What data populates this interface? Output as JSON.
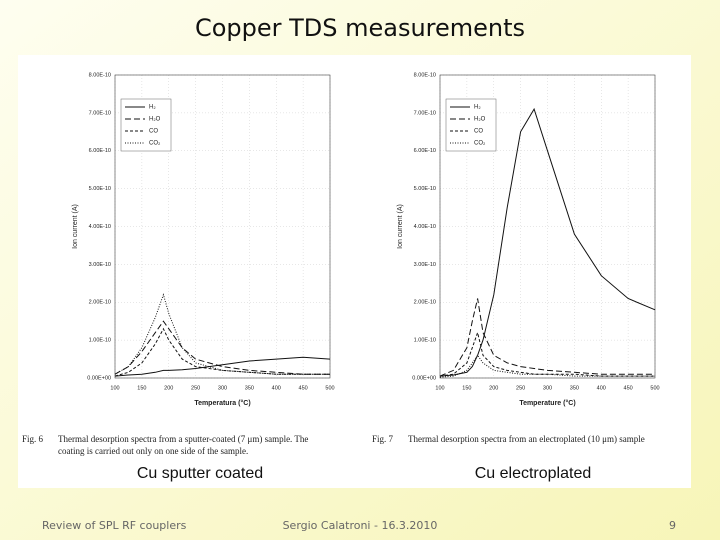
{
  "title": "Copper TDS measurements",
  "footer": {
    "left": "Review of SPL RF couplers",
    "center": "Sergio Calatroni - 16.3.2010",
    "page": "9"
  },
  "chart_data": [
    {
      "type": "line",
      "label": "Cu sputter coated",
      "caption": [
        "Fig. 6",
        "Thermal desorption spectra from a sputter-coated (7 μm) sample. The",
        "coating is carried out only on one side of the sample."
      ],
      "xlabel": "Temperatura (°C)",
      "ylabel": "Ion current (A)",
      "x": [
        100,
        125,
        150,
        175,
        190,
        200,
        225,
        250,
        300,
        350,
        400,
        450,
        500
      ],
      "series": [
        {
          "name": "H₂",
          "color": "#111111",
          "dash": "solid",
          "values": [
            5e-12,
            8e-12,
            1e-11,
            1.5e-11,
            2e-11,
            2e-11,
            2.2e-11,
            2.5e-11,
            3.5e-11,
            4.5e-11,
            5e-11,
            5.5e-11,
            5e-11
          ]
        },
        {
          "name": "H₂O",
          "color": "#111111",
          "dash": "long",
          "values": [
            1e-11,
            3e-11,
            7e-11,
            1.2e-10,
            1.5e-10,
            1.3e-10,
            8e-11,
            5e-11,
            3e-11,
            2e-11,
            1.5e-11,
            1e-11,
            1e-11
          ]
        },
        {
          "name": "CO",
          "color": "#111111",
          "dash": "dashed",
          "values": [
            5e-12,
            1.5e-11,
            4e-11,
            9e-11,
            1.3e-10,
            1e-10,
            5e-11,
            3e-11,
            2e-11,
            1.5e-11,
            1e-11,
            1e-11,
            1e-11
          ]
        },
        {
          "name": "CO₂",
          "color": "#111111",
          "dash": "dotted",
          "values": [
            1e-11,
            3e-11,
            8e-11,
            1.6e-10,
            2.2e-10,
            1.7e-10,
            8e-11,
            4e-11,
            2e-11,
            1.5e-11,
            1e-11,
            1e-11,
            1e-11
          ]
        }
      ],
      "xlim": [
        100,
        500
      ],
      "xticks": [
        100,
        150,
        200,
        250,
        300,
        350,
        400,
        450,
        500
      ],
      "ylim": [
        0,
        8e-10
      ],
      "yticks": [
        {
          "value": 0,
          "label": "0.00E+00"
        },
        {
          "value": 1e-10,
          "label": "1.00E-10"
        },
        {
          "value": 2e-10,
          "label": "2.00E-10"
        },
        {
          "value": 3e-10,
          "label": "3.00E-10"
        },
        {
          "value": 4e-10,
          "label": "4.00E-10"
        },
        {
          "value": 5e-10,
          "label": "5.00E-10"
        },
        {
          "value": 6e-10,
          "label": "6.00E-10"
        },
        {
          "value": 7e-10,
          "label": "7.00E-10"
        },
        {
          "value": 8e-10,
          "label": "8.00E-10"
        }
      ],
      "grid": true,
      "legend": "upper left"
    },
    {
      "type": "line",
      "label": "Cu electroplated",
      "caption": [
        "Fig. 7",
        "Thermal desorption spectra from an electroplated (10 μm) sample"
      ],
      "xlabel": "Temperature (°C)",
      "ylabel": "Ion current (A)",
      "x": [
        100,
        125,
        150,
        160,
        170,
        180,
        200,
        225,
        250,
        275,
        300,
        350,
        400,
        450,
        500
      ],
      "series": [
        {
          "name": "H₂",
          "color": "#111111",
          "dash": "solid",
          "values": [
            5e-12,
            8e-12,
            1.5e-11,
            3e-11,
            6e-11,
            1e-10,
            2.2e-10,
            4.5e-10,
            6.5e-10,
            7.1e-10,
            6e-10,
            3.8e-10,
            2.7e-10,
            2.1e-10,
            1.8e-10
          ]
        },
        {
          "name": "H₂O",
          "color": "#111111",
          "dash": "long",
          "values": [
            5e-12,
            2e-11,
            8e-11,
            1.5e-10,
            2.1e-10,
            1.2e-10,
            6e-11,
            4e-11,
            3e-11,
            2.5e-11,
            2e-11,
            1.5e-11,
            1e-11,
            1e-11,
            1e-11
          ]
        },
        {
          "name": "CO",
          "color": "#111111",
          "dash": "dashed",
          "values": [
            5e-12,
            1e-11,
            4e-11,
            8e-11,
            1.2e-10,
            6e-11,
            3e-11,
            2e-11,
            1.5e-11,
            1e-11,
            1e-11,
            1e-11,
            5e-12,
            5e-12,
            5e-12
          ]
        },
        {
          "name": "CO₂",
          "color": "#111111",
          "dash": "dotted",
          "values": [
            2e-12,
            5e-12,
            2e-11,
            4e-11,
            6e-11,
            4e-11,
            2e-11,
            1.5e-11,
            1e-11,
            1e-11,
            1e-11,
            5e-12,
            5e-12,
            5e-12,
            5e-12
          ]
        }
      ],
      "xlim": [
        100,
        500
      ],
      "xticks": [
        100,
        150,
        200,
        250,
        300,
        350,
        400,
        450,
        500
      ],
      "ylim": [
        0,
        8e-10
      ],
      "yticks": [
        {
          "value": 0,
          "label": "0.00E+00"
        },
        {
          "value": 1e-10,
          "label": "1.00E-10"
        },
        {
          "value": 2e-10,
          "label": "2.00E-10"
        },
        {
          "value": 3e-10,
          "label": "3.00E-10"
        },
        {
          "value": 4e-10,
          "label": "4.00E-10"
        },
        {
          "value": 5e-10,
          "label": "5.00E-10"
        },
        {
          "value": 6e-10,
          "label": "6.00E-10"
        },
        {
          "value": 7e-10,
          "label": "7.00E-10"
        },
        {
          "value": 8e-10,
          "label": "8.00E-10"
        }
      ],
      "grid": true,
      "legend": "upper left"
    }
  ]
}
